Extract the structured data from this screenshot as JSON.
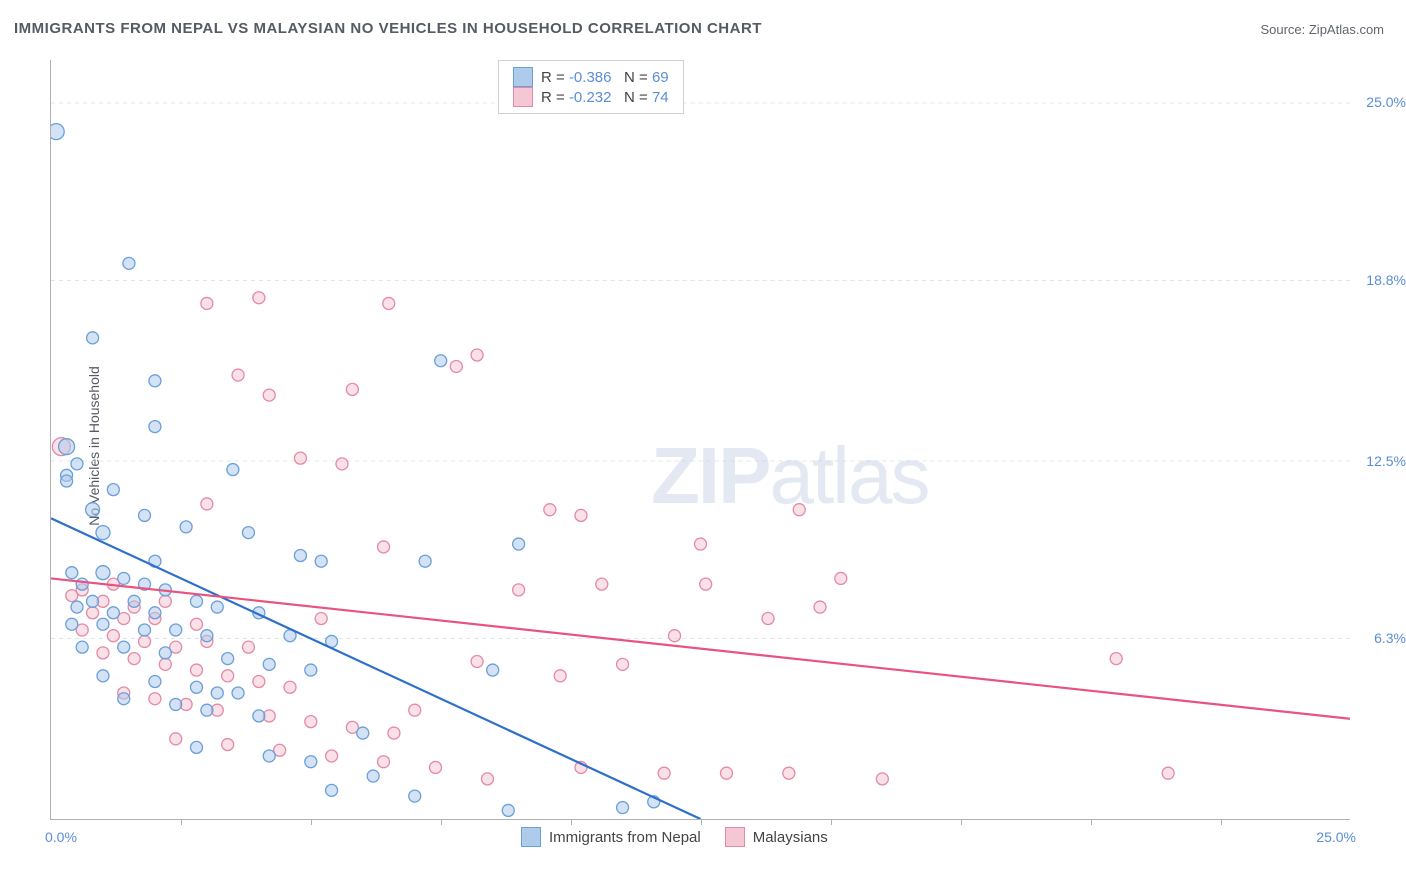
{
  "title": "IMMIGRANTS FROM NEPAL VS MALAYSIAN NO VEHICLES IN HOUSEHOLD CORRELATION CHART",
  "source": "Source: ZipAtlas.com",
  "ylabel": "No Vehicles in Household",
  "watermark_a": "ZIP",
  "watermark_b": "atlas",
  "chart": {
    "type": "scatter",
    "background_color": "#ffffff",
    "grid_color": "#e5e5e5",
    "axis_color": "#b0b0b0",
    "tick_color": "#5b8dd6",
    "xlim": [
      0,
      25
    ],
    "ylim": [
      0,
      26.5
    ],
    "xtick_left": "0.0%",
    "xtick_right": "25.0%",
    "ytick_labels": [
      "6.3%",
      "12.5%",
      "18.8%",
      "25.0%"
    ],
    "ytick_values": [
      6.3,
      12.5,
      18.8,
      25.0
    ],
    "x_minor_tick_positions": [
      2.5,
      5,
      7.5,
      10,
      12.5,
      15,
      17.5,
      20,
      22.5
    ],
    "series": [
      {
        "name": "Immigrants from Nepal",
        "fill": "#aecbeb",
        "stroke": "#6a9fd8",
        "line_color": "#2e6fc9",
        "r_label": "R = ",
        "r_value": "-0.386",
        "n_label": "N = ",
        "n_value": "69",
        "trend": {
          "x1": 0,
          "y1": 10.5,
          "x2": 12.5,
          "y2": 0
        },
        "points": [
          [
            0.1,
            24.0,
            8
          ],
          [
            0.3,
            12.0,
            6
          ],
          [
            0.3,
            13.0,
            8
          ],
          [
            0.3,
            11.8,
            6
          ],
          [
            1.5,
            19.4,
            6
          ],
          [
            0.8,
            16.8,
            6
          ],
          [
            2.0,
            15.3,
            6
          ],
          [
            0.5,
            12.4,
            6
          ],
          [
            1.2,
            11.5,
            6
          ],
          [
            2.0,
            13.7,
            6
          ],
          [
            3.5,
            12.2,
            6
          ],
          [
            0.8,
            10.8,
            7
          ],
          [
            1.8,
            10.6,
            6
          ],
          [
            1.0,
            10.0,
            7
          ],
          [
            2.0,
            9.0,
            6
          ],
          [
            2.6,
            10.2,
            6
          ],
          [
            3.8,
            10.0,
            6
          ],
          [
            4.8,
            9.2,
            6
          ],
          [
            5.2,
            9.0,
            6
          ],
          [
            0.4,
            8.6,
            6
          ],
          [
            1.0,
            8.6,
            7
          ],
          [
            1.4,
            8.4,
            6
          ],
          [
            0.6,
            8.2,
            6
          ],
          [
            1.8,
            8.2,
            6
          ],
          [
            2.2,
            8.0,
            6
          ],
          [
            0.8,
            7.6,
            6
          ],
          [
            1.6,
            7.6,
            6
          ],
          [
            2.8,
            7.6,
            6
          ],
          [
            0.5,
            7.4,
            6
          ],
          [
            1.2,
            7.2,
            6
          ],
          [
            2.0,
            7.2,
            6
          ],
          [
            3.2,
            7.4,
            6
          ],
          [
            4.0,
            7.2,
            6
          ],
          [
            0.4,
            6.8,
            6
          ],
          [
            1.0,
            6.8,
            6
          ],
          [
            1.8,
            6.6,
            6
          ],
          [
            2.4,
            6.6,
            6
          ],
          [
            3.0,
            6.4,
            6
          ],
          [
            4.6,
            6.4,
            6
          ],
          [
            5.4,
            6.2,
            6
          ],
          [
            0.6,
            6.0,
            6
          ],
          [
            1.4,
            6.0,
            6
          ],
          [
            2.2,
            5.8,
            6
          ],
          [
            3.4,
            5.6,
            6
          ],
          [
            4.2,
            5.4,
            6
          ],
          [
            5.0,
            5.2,
            6
          ],
          [
            1.0,
            5.0,
            6
          ],
          [
            2.0,
            4.8,
            6
          ],
          [
            2.8,
            4.6,
            6
          ],
          [
            3.6,
            4.4,
            6
          ],
          [
            1.4,
            4.2,
            6
          ],
          [
            2.4,
            4.0,
            6
          ],
          [
            3.0,
            3.8,
            6
          ],
          [
            4.0,
            3.6,
            6
          ],
          [
            2.8,
            2.5,
            6
          ],
          [
            4.2,
            2.2,
            6
          ],
          [
            5.0,
            2.0,
            6
          ],
          [
            6.2,
            1.5,
            6
          ],
          [
            3.2,
            4.4,
            6
          ],
          [
            7.0,
            0.8,
            6
          ],
          [
            5.4,
            1.0,
            6
          ],
          [
            8.5,
            5.2,
            6
          ],
          [
            7.5,
            16.0,
            6
          ],
          [
            7.2,
            9.0,
            6
          ],
          [
            11.0,
            0.4,
            6
          ],
          [
            11.6,
            0.6,
            6
          ],
          [
            8.8,
            0.3,
            6
          ],
          [
            9.0,
            9.6,
            6
          ],
          [
            6.0,
            3.0,
            6
          ]
        ]
      },
      {
        "name": "Malaysians",
        "fill": "#f5c6d4",
        "stroke": "#e38aa6",
        "line_color": "#e75480",
        "r_label": "R = ",
        "r_value": "-0.232",
        "n_label": "N = ",
        "n_value": "74",
        "trend": {
          "x1": 0,
          "y1": 8.4,
          "x2": 25,
          "y2": 3.5
        },
        "points": [
          [
            0.2,
            13.0,
            9
          ],
          [
            3.0,
            18.0,
            6
          ],
          [
            4.0,
            18.2,
            6
          ],
          [
            6.5,
            18.0,
            6
          ],
          [
            3.6,
            15.5,
            6
          ],
          [
            4.2,
            14.8,
            6
          ],
          [
            5.8,
            15.0,
            6
          ],
          [
            7.8,
            15.8,
            6
          ],
          [
            8.2,
            16.2,
            6
          ],
          [
            4.8,
            12.6,
            6
          ],
          [
            5.6,
            12.4,
            6
          ],
          [
            6.4,
            9.5,
            6
          ],
          [
            9.6,
            10.8,
            6
          ],
          [
            10.2,
            10.6,
            6
          ],
          [
            12.5,
            9.6,
            6
          ],
          [
            14.4,
            10.8,
            6
          ],
          [
            14.8,
            7.4,
            6
          ],
          [
            15.2,
            8.4,
            6
          ],
          [
            0.6,
            8.0,
            6
          ],
          [
            1.2,
            8.2,
            6
          ],
          [
            0.4,
            7.8,
            6
          ],
          [
            1.0,
            7.6,
            6
          ],
          [
            1.6,
            7.4,
            6
          ],
          [
            2.2,
            7.6,
            6
          ],
          [
            0.8,
            7.2,
            6
          ],
          [
            1.4,
            7.0,
            6
          ],
          [
            2.0,
            7.0,
            6
          ],
          [
            2.8,
            6.8,
            6
          ],
          [
            0.6,
            6.6,
            6
          ],
          [
            1.2,
            6.4,
            6
          ],
          [
            1.8,
            6.2,
            6
          ],
          [
            2.4,
            6.0,
            6
          ],
          [
            3.0,
            6.2,
            6
          ],
          [
            3.8,
            6.0,
            6
          ],
          [
            1.0,
            5.8,
            6
          ],
          [
            1.6,
            5.6,
            6
          ],
          [
            2.2,
            5.4,
            6
          ],
          [
            2.8,
            5.2,
            6
          ],
          [
            3.4,
            5.0,
            6
          ],
          [
            4.0,
            4.8,
            6
          ],
          [
            4.6,
            4.6,
            6
          ],
          [
            1.4,
            4.4,
            6
          ],
          [
            2.0,
            4.2,
            6
          ],
          [
            2.6,
            4.0,
            6
          ],
          [
            3.2,
            3.8,
            6
          ],
          [
            4.2,
            3.6,
            6
          ],
          [
            5.0,
            3.4,
            6
          ],
          [
            5.8,
            3.2,
            6
          ],
          [
            6.6,
            3.0,
            6
          ],
          [
            2.4,
            2.8,
            6
          ],
          [
            3.4,
            2.6,
            6
          ],
          [
            4.4,
            2.4,
            6
          ],
          [
            5.4,
            2.2,
            6
          ],
          [
            6.4,
            2.0,
            6
          ],
          [
            7.4,
            1.8,
            6
          ],
          [
            8.2,
            5.5,
            6
          ],
          [
            9.0,
            8.0,
            6
          ],
          [
            9.8,
            5.0,
            6
          ],
          [
            10.6,
            8.2,
            6
          ],
          [
            10.2,
            1.8,
            6
          ],
          [
            11.8,
            1.6,
            6
          ],
          [
            12.0,
            6.4,
            6
          ],
          [
            13.0,
            1.6,
            6
          ],
          [
            14.2,
            1.6,
            6
          ],
          [
            16.0,
            1.4,
            6
          ],
          [
            11.0,
            5.4,
            6
          ],
          [
            12.6,
            8.2,
            6
          ],
          [
            8.4,
            1.4,
            6
          ],
          [
            20.5,
            5.6,
            6
          ],
          [
            21.5,
            1.6,
            6
          ],
          [
            7.0,
            3.8,
            6
          ],
          [
            5.2,
            7.0,
            6
          ],
          [
            13.8,
            7.0,
            6
          ],
          [
            3.0,
            11.0,
            6
          ]
        ]
      }
    ],
    "legend_top_swatch_border": 1,
    "legend_bottom": {
      "series1_label": "Immigrants from Nepal",
      "series2_label": "Malaysians"
    }
  }
}
